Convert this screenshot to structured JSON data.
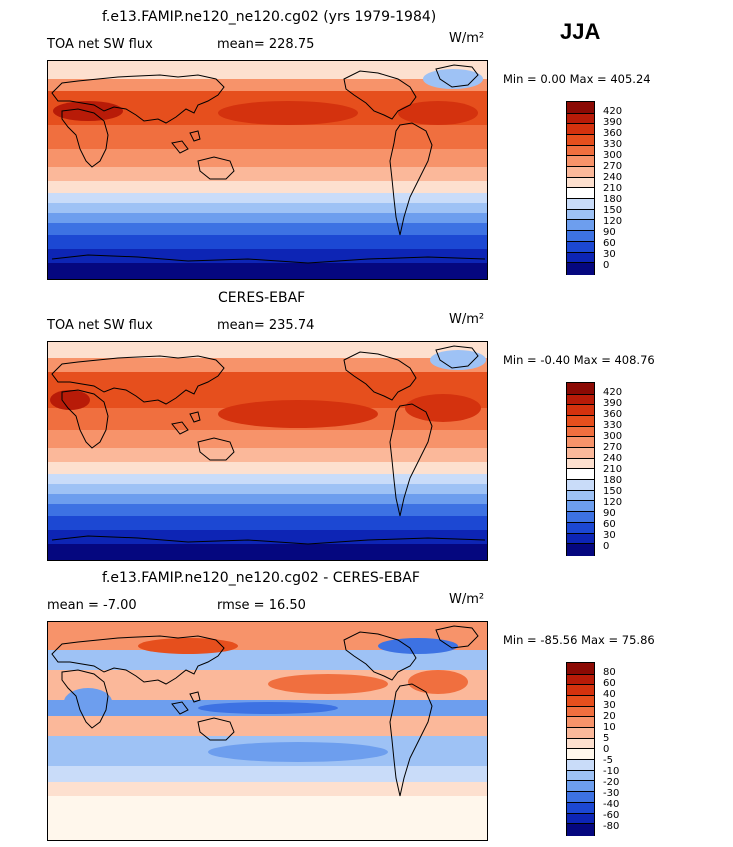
{
  "season": "JJA",
  "panels": [
    {
      "title": "f.e13.FAMIP.ne120_ne120.cg02 (yrs 1979-1984)",
      "left_label": "TOA net SW flux",
      "stat_label": "mean= 228.75",
      "units": "W/m²",
      "min_max": "Min =   0.00 Max = 405.24",
      "ticks": [
        "420",
        "390",
        "360",
        "330",
        "300",
        "270",
        "240",
        "210",
        "180",
        "150",
        "120",
        "90",
        "60",
        "30",
        "0"
      ]
    },
    {
      "title": "CERES-EBAF",
      "left_label": "TOA net SW flux",
      "stat_label": "mean= 235.74",
      "units": "W/m²",
      "min_max": "Min =  -0.40 Max = 408.76",
      "ticks": [
        "420",
        "390",
        "360",
        "330",
        "300",
        "270",
        "240",
        "210",
        "180",
        "150",
        "120",
        "90",
        "60",
        "30",
        "0"
      ]
    },
    {
      "title": "f.e13.FAMIP.ne120_ne120.cg02 - CERES-EBAF",
      "left_label": "mean =  -7.00",
      "stat_label": "rmse =  16.50",
      "units": "W/m²",
      "min_max": "Min = -85.56 Max =  75.86",
      "ticks": [
        "80",
        "60",
        "40",
        "30",
        "20",
        "10",
        "5",
        "0",
        "-5",
        "-10",
        "-20",
        "-30",
        "-40",
        "-60",
        "-80"
      ]
    }
  ],
  "colors": {
    "abs_scale": [
      "#8b0a04",
      "#b81b08",
      "#d4320e",
      "#e64f1d",
      "#f06f3f",
      "#f7936a",
      "#fbb89a",
      "#fde0cf",
      "#ffffff",
      "#c9dcf9",
      "#9ec2f5",
      "#6d9eee",
      "#3d72e3",
      "#1c48d3",
      "#0d25b5",
      "#05077f"
    ],
    "diff_scale": [
      "#8b0a04",
      "#b81b08",
      "#d4320e",
      "#e64f1d",
      "#f06f3f",
      "#f7936a",
      "#fbb89a",
      "#fde0cf",
      "#fff7ec",
      "#c9dcf9",
      "#9ec2f5",
      "#6d9eee",
      "#3d72e3",
      "#1c48d3",
      "#0d25b5",
      "#05077f"
    ]
  }
}
